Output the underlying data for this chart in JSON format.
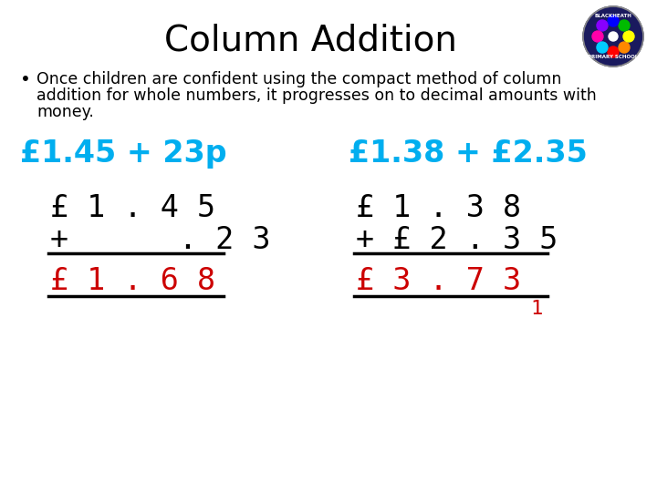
{
  "title": "Column Addition",
  "title_fontsize": 28,
  "title_color": "#000000",
  "bg_color": "#ffffff",
  "bullet_text_line1": "Once children are confident using the compact method of column",
  "bullet_text_line2": "addition for whole numbers, it progresses on to decimal amounts with",
  "bullet_text_line3": "money.",
  "bullet_fontsize": 12.5,
  "bullet_color": "#000000",
  "cyan_color": "#00AEEF",
  "red_color": "#CC0000",
  "black_color": "#000000",
  "label1": "£1.45 + 23p",
  "label2": "£1.38 + £2.35",
  "label_fontsize": 24,
  "carry": "1",
  "calc_fontsize": 24,
  "logo_colors": [
    "#FF0000",
    "#FF8800",
    "#FFFF00",
    "#00BB00",
    "#0000FF",
    "#8800FF",
    "#FF00AA",
    "#00CCFF"
  ]
}
